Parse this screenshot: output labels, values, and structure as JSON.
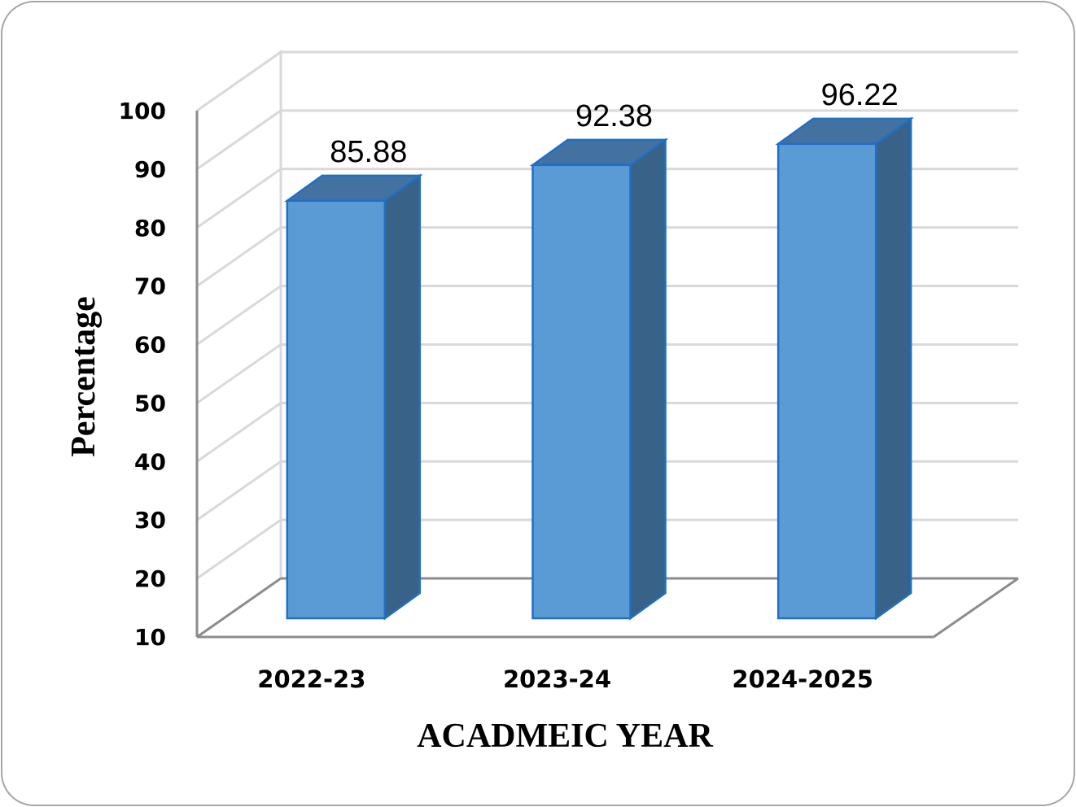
{
  "chart_data": {
    "type": "bar",
    "categories": [
      "2022-23",
      "2023-24",
      "2024-2025"
    ],
    "values": [
      85.88,
      92.38,
      96.22
    ],
    "data_labels": [
      "85.88",
      "92.38",
      "96.22"
    ],
    "xlabel": "ACADMEIC YEAR",
    "ylabel": "Percentage",
    "ylim": [
      10,
      100
    ],
    "yticks": [
      "10",
      "20",
      "30",
      "40",
      "50",
      "60",
      "70",
      "80",
      "90",
      "100"
    ],
    "grid": true,
    "legend": "none",
    "style": "3d-column",
    "colors": {
      "bar_front": "#5b9bd5",
      "bar_side": "#386287",
      "bar_top": "#4472a0",
      "bar_outline": "#1f6fc5"
    }
  }
}
